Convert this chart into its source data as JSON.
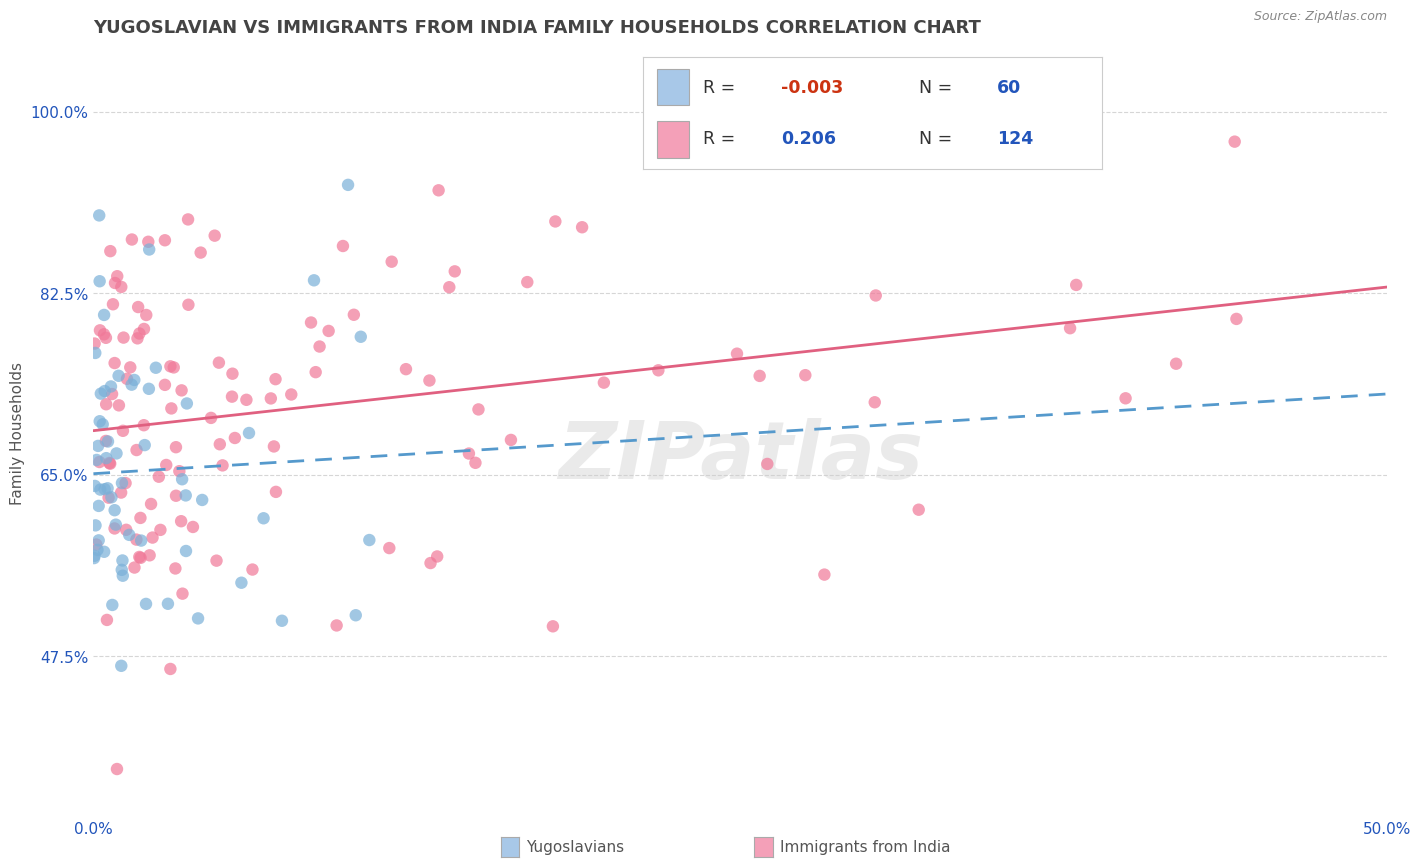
{
  "title": "YUGOSLAVIAN VS IMMIGRANTS FROM INDIA FAMILY HOUSEHOLDS CORRELATION CHART",
  "source": "Source: ZipAtlas.com",
  "ylabel": "Family Households",
  "xlim": [
    0.0,
    0.5
  ],
  "ylim": [
    0.32,
    1.06
  ],
  "yticks": [
    0.475,
    0.65,
    0.825,
    1.0
  ],
  "ytick_labels": [
    "47.5%",
    "65.0%",
    "82.5%",
    "100.0%"
  ],
  "xticks": [
    0.0,
    0.1,
    0.2,
    0.3,
    0.4,
    0.5
  ],
  "xtick_labels": [
    "0.0%",
    "",
    "",
    "",
    "",
    "50.0%"
  ],
  "legend_labels": [
    "Yugoslavians",
    "Immigrants from India"
  ],
  "r_yug": -0.003,
  "n_yug": 60,
  "r_india": 0.206,
  "n_india": 124,
  "color_yug": "#a8c8e8",
  "color_india": "#f4a0b8",
  "dot_color_yug": "#7ab0d8",
  "dot_color_india": "#f07898",
  "line_color_yug": "#5599cc",
  "line_color_india": "#e06080",
  "background_color": "#ffffff",
  "grid_color": "#cccccc",
  "title_color": "#444444",
  "watermark": "ZIPatlas",
  "title_fontsize": 13,
  "axis_fontsize": 11,
  "tick_fontsize": 11,
  "r_neg_color": "#cc3311",
  "r_pos_color": "#2255bb",
  "n_color": "#2255bb",
  "legend_text_color": "#333333"
}
